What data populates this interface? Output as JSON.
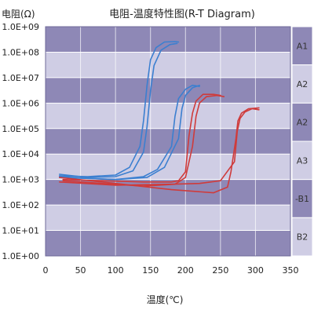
{
  "chart_data": {
    "type": "line",
    "title": "电阻-温度特性图(R-T Diagram)",
    "ylabel": "电阻(Ω)",
    "xlabel": "温度(℃)",
    "y_scale": "log",
    "xlim": [
      0,
      350
    ],
    "ylim": [
      1,
      1000000000
    ],
    "x_ticks": [
      "0",
      "50",
      "100",
      "150",
      "200",
      "250",
      "300",
      "350"
    ],
    "y_ticks": [
      "1.0E+00",
      "1.0E+01",
      "1.0E+02",
      "1.0E+03",
      "1.0E+04",
      "1.0E+05",
      "1.0E+06",
      "1.0E+07",
      "1.0E+08",
      "1.0E+09"
    ],
    "grid": true,
    "bands": [
      "A1",
      "A2",
      "A2",
      "A3",
      "-B1",
      "B2"
    ],
    "colors": {
      "band_dark": "#8e88b6",
      "band_light": "#cfcde4",
      "blue": "#3b7fd0",
      "red": "#cf3b3b"
    },
    "series": [
      {
        "color": "blue",
        "x": [
          20,
          60,
          100,
          120,
          135,
          140,
          145,
          150,
          158,
          170,
          185,
          190
        ],
        "y": [
          1400,
          1300,
          1500,
          3000,
          20000,
          200000,
          5000000,
          50000000,
          150000000,
          250000000,
          260000000,
          250000000
        ]
      },
      {
        "color": "blue",
        "x": [
          20,
          60,
          100,
          125,
          140,
          145,
          150,
          155,
          165,
          178,
          188
        ],
        "y": [
          1600,
          1200,
          1300,
          2200,
          12000,
          120000,
          3000000,
          30000000,
          120000000,
          200000000,
          220000000
        ]
      },
      {
        "color": "blue",
        "x": [
          20,
          60,
          100,
          140,
          160,
          180,
          185,
          190,
          200,
          210,
          220
        ],
        "y": [
          1200,
          1100,
          1000,
          1300,
          2500,
          20000,
          300000,
          1500000,
          3500000,
          5000000,
          4500000
        ]
      },
      {
        "color": "blue",
        "x": [
          20,
          60,
          100,
          145,
          170,
          190,
          195,
          200,
          210,
          220
        ],
        "y": [
          1300,
          1100,
          1000,
          1200,
          3000,
          40000,
          600000,
          2000000,
          4000000,
          5000000
        ]
      },
      {
        "color": "red",
        "x": [
          25,
          80,
          140,
          180,
          190,
          200,
          205,
          210,
          215,
          225,
          240,
          250
        ],
        "y": [
          1000,
          900,
          800,
          800,
          900,
          2000,
          50000,
          400000,
          1200000,
          2200000,
          2200000,
          2000000
        ]
      },
      {
        "color": "red",
        "x": [
          25,
          80,
          140,
          185,
          200,
          210,
          215,
          220,
          230,
          245,
          255
        ],
        "y": [
          900,
          700,
          550,
          650,
          1200,
          20000,
          300000,
          1000000,
          1800000,
          2000000,
          1800000
        ]
      },
      {
        "color": "red",
        "x": [
          20,
          100,
          180,
          240,
          260,
          265,
          272,
          275,
          280,
          290,
          305
        ],
        "y": [
          1200,
          700,
          400,
          300,
          500,
          2000,
          40000,
          200000,
          400000,
          600000,
          650000
        ]
      },
      {
        "color": "red",
        "x": [
          20,
          100,
          180,
          220,
          250,
          270,
          274,
          278,
          285,
          295,
          305
        ],
        "y": [
          800,
          600,
          650,
          700,
          900,
          5000,
          80000,
          250000,
          450000,
          600000,
          550000
        ]
      }
    ]
  }
}
